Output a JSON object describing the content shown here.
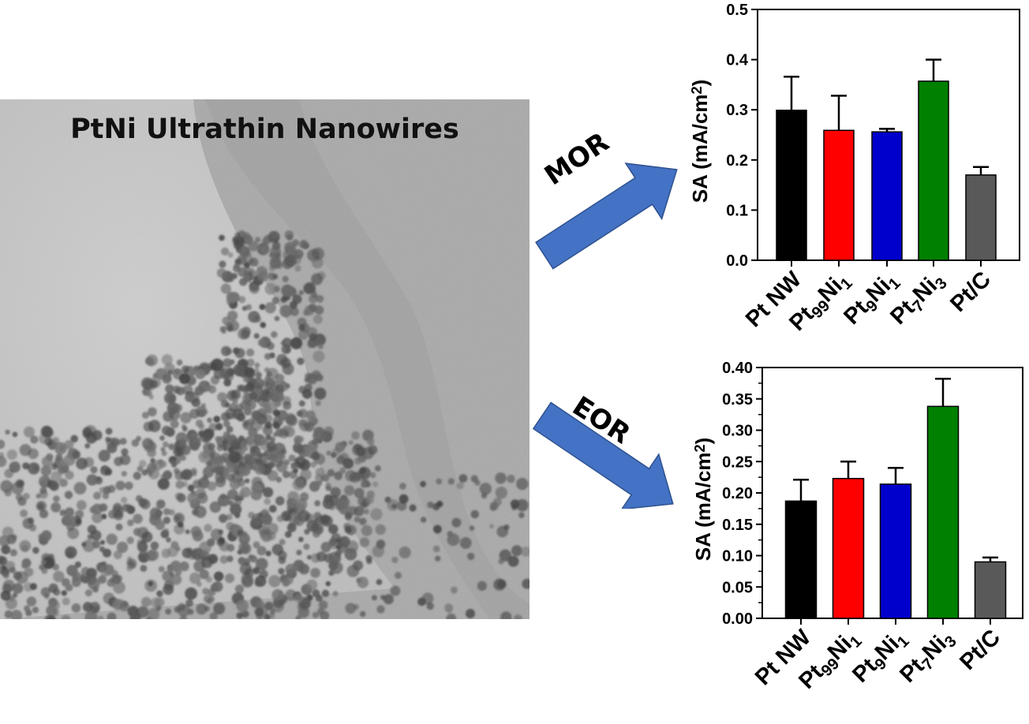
{
  "figure": {
    "image_title": "PtNi Ultrathin Nanowires",
    "arrow_top_label": "MOR",
    "arrow_bottom_label": "EOR",
    "arrow_color": "#4472C4"
  },
  "chart_data": [
    {
      "id": "mor",
      "type": "bar",
      "ylabel": "SA (mA/cm2)",
      "ylabel_parts": [
        {
          "t": "SA (mA/cm"
        },
        {
          "t": "2",
          "sup": true
        },
        {
          "t": ")"
        }
      ],
      "ylim": [
        0,
        0.5
      ],
      "yticks": [
        0.0,
        0.1,
        0.2,
        0.3,
        0.4,
        0.5
      ],
      "ytick_labels": [
        "0.0",
        "0.1",
        "0.2",
        "0.3",
        "0.4",
        "0.5"
      ],
      "categories": [
        "Pt NW",
        "Pt99Ni1",
        "Pt9Ni1",
        "Pt7Ni3",
        "Pt/C"
      ],
      "category_parts": [
        [
          {
            "t": "Pt NW"
          }
        ],
        [
          {
            "t": "Pt"
          },
          {
            "t": "99",
            "sub": true
          },
          {
            "t": "Ni"
          },
          {
            "t": "1",
            "sub": true
          }
        ],
        [
          {
            "t": "Pt"
          },
          {
            "t": "9",
            "sub": true
          },
          {
            "t": "Ni"
          },
          {
            "t": "1",
            "sub": true
          }
        ],
        [
          {
            "t": "Pt"
          },
          {
            "t": "7",
            "sub": true
          },
          {
            "t": "Ni"
          },
          {
            "t": "3",
            "sub": true
          }
        ],
        [
          {
            "t": "Pt/C"
          }
        ]
      ],
      "values": [
        0.299,
        0.259,
        0.256,
        0.357,
        0.17
      ],
      "errors": [
        0.067,
        0.069,
        0.006,
        0.043,
        0.016
      ],
      "colors": [
        "#000000",
        "#FF0000",
        "#0000CC",
        "#008000",
        "#595959"
      ],
      "grid": false,
      "legend": "none"
    },
    {
      "id": "eor",
      "type": "bar",
      "ylabel": "SA (mA/cm2)",
      "ylabel_parts": [
        {
          "t": "SA (mA/cm"
        },
        {
          "t": "2",
          "sup": true
        },
        {
          "t": ")"
        }
      ],
      "ylim": [
        0,
        0.4
      ],
      "yticks": [
        0.0,
        0.05,
        0.1,
        0.15,
        0.2,
        0.25,
        0.3,
        0.35,
        0.4
      ],
      "ytick_labels": [
        "0.00",
        "0.05",
        "0.10",
        "0.15",
        "0.20",
        "0.25",
        "0.30",
        "0.35",
        "0.40"
      ],
      "categories": [
        "Pt NW",
        "Pt99Ni1",
        "Pt9Ni1",
        "Pt7Ni3",
        "Pt/C"
      ],
      "category_parts": [
        [
          {
            "t": "Pt NW"
          }
        ],
        [
          {
            "t": "Pt"
          },
          {
            "t": "99",
            "sub": true
          },
          {
            "t": "Ni"
          },
          {
            "t": "1",
            "sub": true
          }
        ],
        [
          {
            "t": "Pt"
          },
          {
            "t": "9",
            "sub": true
          },
          {
            "t": "Ni"
          },
          {
            "t": "1",
            "sub": true
          }
        ],
        [
          {
            "t": "Pt"
          },
          {
            "t": "7",
            "sub": true
          },
          {
            "t": "Ni"
          },
          {
            "t": "3",
            "sub": true
          }
        ],
        [
          {
            "t": "Pt/C"
          }
        ]
      ],
      "values": [
        0.187,
        0.223,
        0.214,
        0.338,
        0.09
      ],
      "errors": [
        0.034,
        0.027,
        0.026,
        0.044,
        0.007
      ],
      "colors": [
        "#000000",
        "#FF0000",
        "#0000CC",
        "#008000",
        "#595959"
      ],
      "grid": false,
      "legend": "none"
    }
  ]
}
